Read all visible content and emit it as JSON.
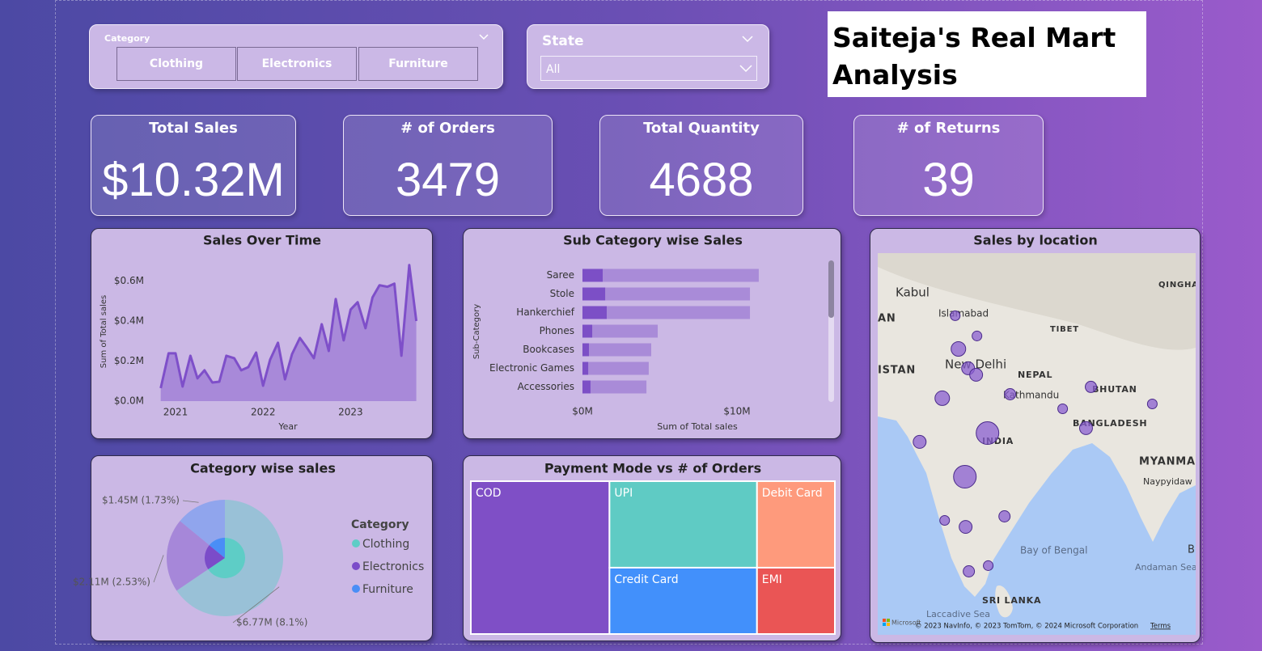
{
  "category_slicer": {
    "label": "Category",
    "options": [
      "Clothing",
      "Electronics",
      "Furniture"
    ]
  },
  "state_slicer": {
    "label": "State",
    "selected": "All"
  },
  "title": "Saiteja's Real Mart Analysis",
  "kpis": [
    {
      "label": "Total Sales",
      "value": "$10.32M"
    },
    {
      "label": "# of Orders",
      "value": 3479
    },
    {
      "label": "Total Quantity",
      "value": 4688
    },
    {
      "label": "# of Returns",
      "value": 39
    }
  ],
  "chart_data": [
    {
      "type": "line",
      "title": "Sales Over Time",
      "x_label": "Year",
      "y_label": "Sum of Total sales",
      "x": [
        2020.83,
        2020.92,
        2021.0,
        2021.08,
        2021.17,
        2021.25,
        2021.33,
        2021.42,
        2021.5,
        2021.58,
        2021.67,
        2021.75,
        2021.83,
        2021.92,
        2022.0,
        2022.08,
        2022.17,
        2022.25,
        2022.33,
        2022.42,
        2022.5,
        2022.58,
        2022.67,
        2022.75,
        2022.83,
        2022.92,
        2023.0,
        2023.08,
        2023.17,
        2023.25,
        2023.33,
        2023.42,
        2023.5,
        2023.58,
        2023.67,
        2023.75
      ],
      "values": [
        65000,
        239000,
        239000,
        73000,
        227000,
        114000,
        154000,
        93000,
        97000,
        227000,
        215000,
        154000,
        170000,
        243000,
        77000,
        207000,
        292000,
        109000,
        235000,
        316000,
        268000,
        215000,
        385000,
        251000,
        511000,
        304000,
        458000,
        495000,
        365000,
        519000,
        580000,
        572000,
        588000,
        227000,
        681000,
        401000
      ],
      "color": "#7e4fc9",
      "area": true,
      "xlim": [
        2020.75,
        2023.8
      ],
      "xticks": [
        2021,
        2022,
        2023
      ],
      "ylim": [
        0,
        700000
      ],
      "yticks": [
        {
          "value": 0,
          "label": "$0.0M"
        },
        {
          "value": 200000,
          "label": "$0.2M"
        },
        {
          "value": 400000,
          "label": "$0.4M"
        },
        {
          "value": 600000,
          "label": "$0.6M"
        }
      ]
    },
    {
      "type": "hbar",
      "title": "Sub Category wise Sales",
      "x_label": "Sum of Total sales",
      "y_label": "Sub-Category",
      "categories": [
        "Saree",
        "Stole",
        "Hankerchief",
        "Phones",
        "Bookcases",
        "Electronic Games",
        "Accessories"
      ],
      "series": [
        {
          "color": "#a98bd8",
          "values": [
            11410000,
            10840000,
            10840000,
            4870000,
            4450000,
            4290000,
            4140000
          ]
        },
        {
          "color": "#7c4fc6",
          "values": [
            1310000,
            1470000,
            1570000,
            630000,
            420000,
            370000,
            520000
          ]
        }
      ],
      "xlim": [
        0,
        15000000
      ],
      "xticks": [
        {
          "value": 0,
          "label": "$0M"
        },
        {
          "value": 10000000,
          "label": "$10M"
        }
      ]
    },
    {
      "type": "donut",
      "title": "Category wise sales",
      "legend_title": "Category",
      "legend": "right",
      "categories": [
        "Clothing",
        "Electronics",
        "Furniture"
      ],
      "values": [
        6770000,
        2110000,
        1450000
      ],
      "value_labels": [
        "$6.77M (8.1%)",
        "$2.11M (2.53%)",
        "$1.45M (1.73%)"
      ],
      "colors": [
        "#5ecdc6",
        "#7b4cc9",
        "#4a8ef6"
      ]
    },
    {
      "type": "treemap",
      "title": "Payment Mode vs # of Orders",
      "categories": [
        "COD",
        "UPI",
        "Credit Card",
        "Debit Card",
        "EMI"
      ],
      "values": [
        1325,
        798,
        612,
        421,
        323
      ],
      "colors": [
        "#7f4fc6",
        "#5fcbc4",
        "#4290fb",
        "#fe9a7c",
        "#ea5555"
      ]
    },
    {
      "type": "map",
      "title": "Sales by location",
      "color": "#8a5fd0",
      "xlim": [
        68,
        98.5
      ],
      "ylim": [
        4.7,
        39.4
      ],
      "x": [
        75.43,
        77.52,
        75.74,
        76.67,
        77.44,
        74.19,
        80.7,
        88.45,
        94.34,
        85.74,
        87.98,
        78.53,
        72.02,
        76.36,
        80.16,
        74.42,
        76.43,
        78.6,
        76.74
      ],
      "y": [
        33.71,
        31.87,
        30.69,
        28.93,
        28.34,
        26.21,
        26.57,
        27.24,
        25.69,
        25.25,
        23.49,
        23.04,
        22.24,
        19.07,
        15.47,
        15.1,
        14.51,
        10.99,
        10.47
      ],
      "sizes": [
        290000,
        290000,
        650000,
        510000,
        510000,
        650000,
        390000,
        390000,
        290000,
        290000,
        510000,
        1570000,
        510000,
        1570000,
        390000,
        290000,
        510000,
        290000,
        390000
      ],
      "place_labels": [
        "Kabul",
        "Islamabad",
        "TIBET",
        "QINGHAI",
        "AN",
        "ISTAN",
        "New Delhi",
        "NEPAL",
        "Kathmandu",
        "BHUTAN",
        "BANGLADESH",
        "INDIA",
        "MYANMAR",
        "Naypyidaw",
        "Bay of Bengal",
        "Andaman Sea",
        "SRI LANKA",
        "Laccadive Sea",
        "B"
      ],
      "provider": "Microsoft",
      "attribution": "© 2023 NavInfo, © 2023 TomTom, © 2024 Microsoft Corporation",
      "terms": "Terms"
    }
  ]
}
